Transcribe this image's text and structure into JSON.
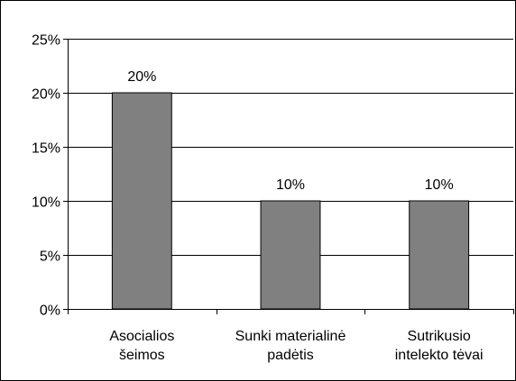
{
  "chart_data": {
    "type": "bar",
    "categories": [
      [
        "Asocialios",
        "šeimos"
      ],
      [
        "Sunki materialinė",
        "padėtis"
      ],
      [
        "Sutrikusio",
        "intelekto tėvai"
      ]
    ],
    "values": [
      20,
      10,
      10
    ],
    "data_labels": [
      "20%",
      "10%",
      "10%"
    ],
    "y_ticks": [
      0,
      5,
      10,
      15,
      20,
      25
    ],
    "y_tick_labels": [
      "0%",
      "5%",
      "10%",
      "15%",
      "20%",
      "25%"
    ],
    "ylim": [
      0,
      25
    ],
    "grid": true,
    "legend": "none",
    "title": "",
    "xlabel": "",
    "ylabel": "",
    "colors": {
      "bar_fill": "#808080",
      "bar_stroke": "#000000",
      "grid": "#000000",
      "axis": "#000000",
      "text": "#000000"
    }
  }
}
